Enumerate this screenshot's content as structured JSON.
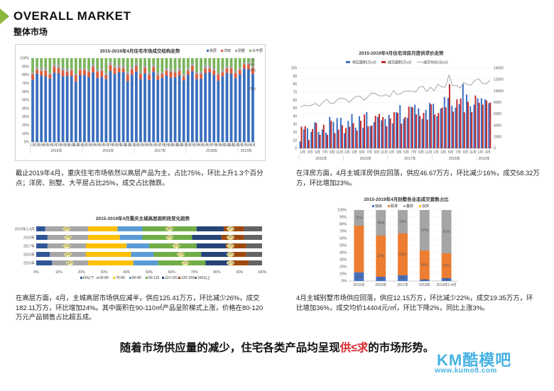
{
  "header": {
    "title_en": "OVERALL MARKET",
    "title_cn": "整体市场"
  },
  "chart1": {
    "title": "2015-2019年4月住宅市场成交结构走势",
    "legend": [
      "高层",
      "洋房",
      "别墅",
      "大平层"
    ],
    "colors": [
      "#3a6fc0",
      "#e05a3a",
      "#9e9e9e",
      "#7ab55c"
    ],
    "yticks": [
      "0%",
      "10%",
      "20%",
      "30%",
      "40%",
      "50%",
      "60%",
      "70%",
      "80%",
      "90%",
      "100%"
    ],
    "years": [
      "2015年",
      "2016年",
      "2017年",
      "2018年",
      "2019年"
    ],
    "bar_label": "75%",
    "top_labels": [
      "1%",
      "6%",
      "18%"
    ]
  },
  "caption1": "截止2019年4月，重庆住宅市场依然以高层产品为主，占比75%，环比上升1.3个百分点；洋房、别墅、大平层占比25%，成交占比微跌。",
  "chart2": {
    "title": "2015-2019年4月住宅洋房月度供求价走势",
    "legend": [
      "供应面积(万㎡)",
      "成交面积(万㎡)",
      "成交均价(元/㎡)"
    ],
    "colors": [
      "#3a6fc0",
      "#c0272d",
      "#a6a6a6"
    ],
    "left_ticks": [
      "0",
      "10",
      "20",
      "30",
      "40",
      "50",
      "60",
      "70",
      "80",
      "90",
      "100"
    ],
    "right_ticks": [
      "0",
      "2000",
      "4000",
      "6000",
      "8000",
      "10000",
      "12000",
      "14000"
    ],
    "xlabels": [
      "1月",
      "3月",
      "5月",
      "7月",
      "9月",
      "11月",
      "1月",
      "3月",
      "5月",
      "7月",
      "9月",
      "11月",
      "1月",
      "3月",
      "5月",
      "7月",
      "9月",
      "11月",
      "1月",
      "3月",
      "5月",
      "7月",
      "9月",
      "11月",
      "1月",
      "3月"
    ],
    "years": [
      "2015年",
      "2016年",
      "2017年",
      "2018年",
      "2019年"
    ]
  },
  "caption2": "在洋房方面，4月主城洋房供应回落，供应46.67万方，环比减少16%，成交58.32万方，环比增加23%。",
  "chart3": {
    "title": "2015-2019年4月重庆主城高层面积段变化趋势",
    "rows": [
      "2019年1-4月",
      "2018年",
      "2017年",
      "2016年",
      "2015年"
    ],
    "xticks": [
      "0%",
      "10%",
      "20%",
      "30%",
      "40%",
      "50%",
      "60%",
      "70%",
      "80%",
      "90%",
      "100%"
    ],
    "legend": [
      "60以下",
      "60-80",
      "70-80",
      "80-90",
      "90-110",
      "110-120",
      "120-150",
      "150以上"
    ],
    "colors": [
      "#2f5597",
      "#a6a6a6",
      "#ffc000",
      "#5b9bd5",
      "#70ad47",
      "#264478",
      "#9e480e",
      "#636363"
    ],
    "pct_labels": [
      [
        "13%",
        "18%",
        "12%"
      ],
      [
        "12%",
        "20%",
        "18%"
      ],
      [
        "21%",
        "21%",
        "13%"
      ],
      [
        "19%",
        "21%",
        "10%"
      ],
      [
        "15%",
        "21%",
        "11%"
      ]
    ]
  },
  "caption3": "在高层方面，4月，主城高层市场供应减半，供应125.41万方，环比减少26%，成交182.11万方，环比增加24%。其中面积在90-110㎡产品呈阶梯式上涨，价格在80-120万元产品销售占比超五成。",
  "chart4": {
    "title": "2015-2019年4月别墅各业态成交套数占比",
    "legend": [
      "独栋",
      "联排",
      "叠拼",
      "双拼"
    ],
    "colors": [
      "#4472c4",
      "#ed7d31",
      "#a5a5a5",
      "#ffc000"
    ],
    "yticks": [
      "0%",
      "10%",
      "20%",
      "30%",
      "40%",
      "50%",
      "60%",
      "70%",
      "80%",
      "90%",
      "100%"
    ],
    "categories": [
      "2015年",
      "2016年",
      "2017年",
      "2018年",
      "2019年1-4月"
    ],
    "labels": [
      [
        "12%",
        "22%"
      ],
      [
        "6%",
        "37%",
        "36%"
      ],
      [
        "8%",
        "61%",
        "33%"
      ],
      [
        "2%",
        "41%",
        "57%"
      ],
      [
        "4%",
        "37%",
        "61%"
      ]
    ]
  },
  "caption4": "4月主城别墅市场供应回落，供应12.15万方，环比减少22%，成交19.35万方，环比增加36%，成交均价14404元/㎡，环比下降2%，同比上涨3%。",
  "conclusion": {
    "pre": "随着市场供应量的减少，住宅各类产品均呈现",
    "red": "供≤求",
    "post": "的市场形势。"
  },
  "watermark": {
    "brand": "KM酷模吧",
    "url": "www.kumo8.com"
  }
}
